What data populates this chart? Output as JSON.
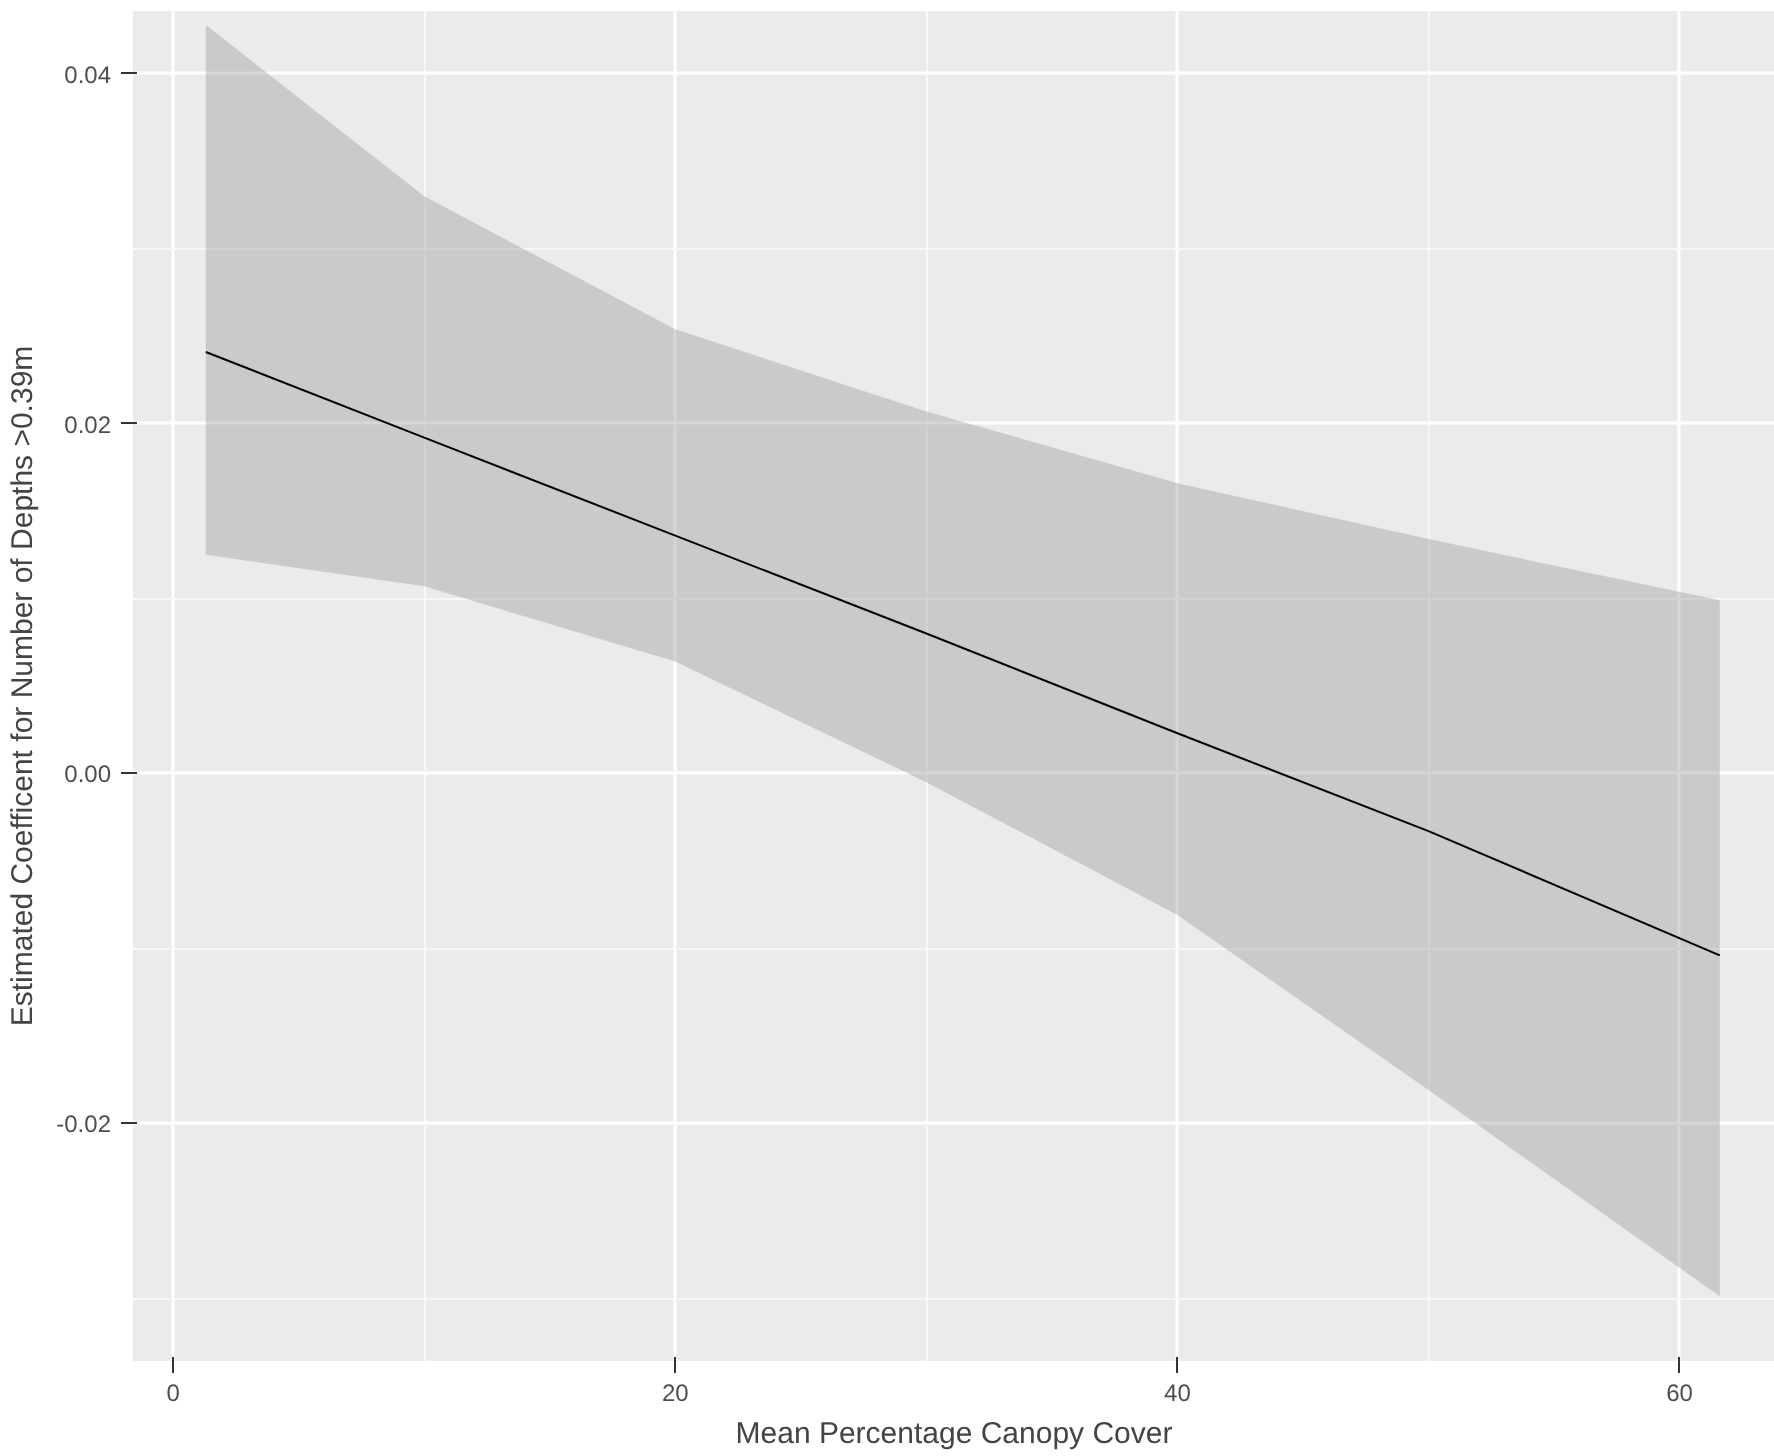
{
  "chart_data": {
    "type": "line",
    "xlabel": "Mean Percentage Canopy Cover",
    "ylabel": "Estimated Coefficent for Number of Depths >0.39m",
    "xlim": [
      -1.6,
      63.8
    ],
    "ylim": [
      -0.0336,
      0.0436
    ],
    "xticks": [
      0,
      20,
      40,
      60
    ],
    "yticks": [
      {
        "value": -0.02,
        "label": "-0.02"
      },
      {
        "value": 0,
        "label": "0.00"
      },
      {
        "value": 0.02,
        "label": "0.02"
      },
      {
        "value": 0.04,
        "label": "0.04"
      }
    ],
    "grid": true,
    "series": [
      {
        "color": "#000000",
        "x": [
          1.3,
          10,
          20,
          30,
          40,
          50,
          61.6
        ],
        "values": [
          0.0241,
          0.0192,
          0.0136,
          0.008,
          0.0023,
          -0.0033,
          -0.0104
        ],
        "lower": [
          0.0125,
          0.0107,
          0.0064,
          -0.0005,
          -0.0081,
          -0.0181,
          -0.0299
        ],
        "upper": [
          0.0428,
          0.033,
          0.0254,
          0.0207,
          0.0166,
          0.0134,
          0.0099
        ]
      }
    ]
  }
}
